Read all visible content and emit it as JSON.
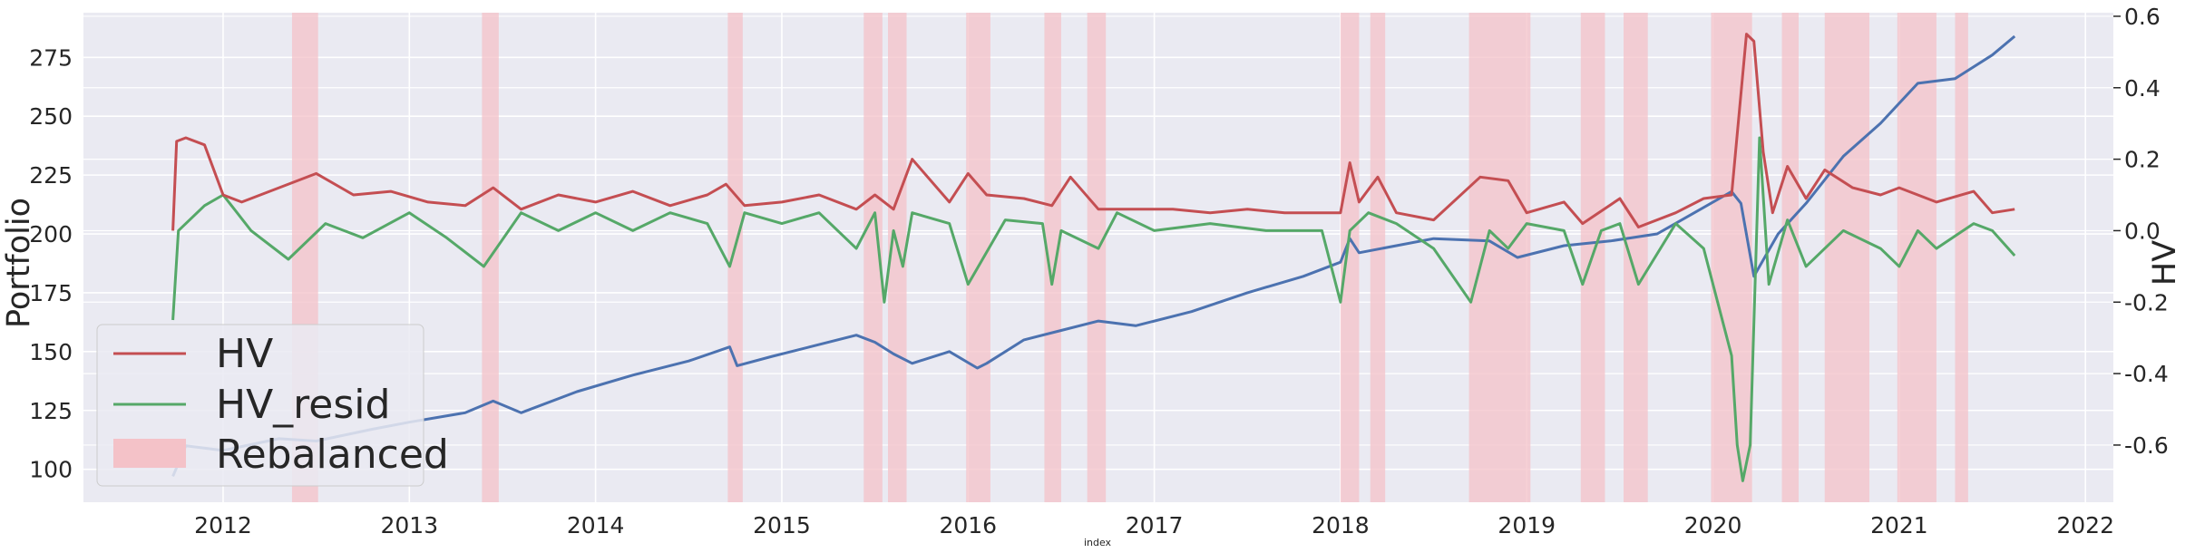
{
  "chart_data": {
    "type": "line",
    "title": "",
    "xlabel": "index",
    "ylabel_left": "Portfolio",
    "ylabel_right": "HV",
    "x_range": [
      2011.25,
      2022.15
    ],
    "xticks": [
      "2012",
      "2013",
      "2014",
      "2015",
      "2016",
      "2017",
      "2018",
      "2019",
      "2020",
      "2021",
      "2022"
    ],
    "left_axis": {
      "ylim": [
        86,
        294
      ],
      "ticks": [
        100,
        125,
        150,
        175,
        200,
        225,
        250,
        275
      ]
    },
    "right_axis": {
      "ylim": [
        -0.76,
        0.61
      ],
      "ticks": [
        -0.6,
        -0.4,
        -0.2,
        0.0,
        0.2,
        0.4,
        0.6
      ]
    },
    "legend": {
      "position": "lower-left"
    },
    "grid": true,
    "colors": {
      "HV": "#c44e52",
      "HV_resid": "#55a868",
      "Portfolio": "#4c72b0",
      "Rebalanced": "#f4c2c8",
      "background": "#eaeaf2"
    },
    "rebalanced_periods": [
      [
        2012.37,
        2012.51
      ],
      [
        2013.39,
        2013.48
      ],
      [
        2014.71,
        2014.79
      ],
      [
        2015.44,
        2015.54
      ],
      [
        2015.57,
        2015.67
      ],
      [
        2015.99,
        2016.12
      ],
      [
        2016.41,
        2016.5
      ],
      [
        2016.64,
        2016.74
      ],
      [
        2018.0,
        2018.1
      ],
      [
        2018.16,
        2018.24
      ],
      [
        2018.69,
        2019.02
      ],
      [
        2019.29,
        2019.42
      ],
      [
        2019.52,
        2019.65
      ],
      [
        2019.99,
        2020.21
      ],
      [
        2020.37,
        2020.46
      ],
      [
        2020.6,
        2020.84
      ],
      [
        2020.99,
        2021.2
      ],
      [
        2021.3,
        2021.37
      ]
    ],
    "series": [
      {
        "name": "Portfolio",
        "axis": "left",
        "x": [
          2011.73,
          2011.8,
          2012.0,
          2012.3,
          2012.5,
          2012.8,
          2013.0,
          2013.3,
          2013.45,
          2013.6,
          2013.9,
          2014.2,
          2014.5,
          2014.72,
          2014.76,
          2014.95,
          2015.2,
          2015.4,
          2015.5,
          2015.6,
          2015.7,
          2015.9,
          2016.05,
          2016.1,
          2016.3,
          2016.5,
          2016.7,
          2016.9,
          2017.2,
          2017.5,
          2017.8,
          2018.0,
          2018.05,
          2018.1,
          2018.3,
          2018.5,
          2018.8,
          2018.95,
          2019.2,
          2019.45,
          2019.7,
          2019.9,
          2020.1,
          2020.15,
          2020.22,
          2020.35,
          2020.5,
          2020.7,
          2020.9,
          2021.1,
          2021.3,
          2021.5,
          2021.62
        ],
        "values": [
          97,
          110,
          108,
          113,
          112,
          117,
          120,
          124,
          129,
          124,
          133,
          140,
          146,
          152,
          144,
          148,
          153,
          157,
          154,
          149,
          145,
          150,
          143,
          145,
          155,
          159,
          163,
          161,
          167,
          175,
          182,
          188,
          198,
          192,
          195,
          198,
          197,
          190,
          195,
          197,
          200,
          209,
          218,
          213,
          182,
          200,
          213,
          233,
          247,
          264,
          266,
          276,
          284
        ]
      },
      {
        "name": "HV",
        "axis": "right",
        "x": [
          2011.73,
          2011.75,
          2011.8,
          2011.9,
          2012.0,
          2012.1,
          2012.3,
          2012.5,
          2012.7,
          2012.9,
          2013.1,
          2013.3,
          2013.45,
          2013.6,
          2013.8,
          2014.0,
          2014.2,
          2014.4,
          2014.6,
          2014.7,
          2014.8,
          2015.0,
          2015.2,
          2015.4,
          2015.5,
          2015.6,
          2015.7,
          2015.9,
          2016.0,
          2016.1,
          2016.3,
          2016.45,
          2016.55,
          2016.7,
          2016.9,
          2017.1,
          2017.3,
          2017.5,
          2017.7,
          2017.9,
          2018.0,
          2018.05,
          2018.1,
          2018.2,
          2018.3,
          2018.5,
          2018.75,
          2018.9,
          2019.0,
          2019.2,
          2019.3,
          2019.5,
          2019.6,
          2019.8,
          2019.95,
          2020.1,
          2020.18,
          2020.22,
          2020.27,
          2020.32,
          2020.4,
          2020.5,
          2020.6,
          2020.75,
          2020.9,
          2021.0,
          2021.2,
          2021.4,
          2021.5,
          2021.62
        ],
        "values": [
          0.0,
          0.25,
          0.26,
          0.24,
          0.1,
          0.08,
          0.12,
          0.16,
          0.1,
          0.11,
          0.08,
          0.07,
          0.12,
          0.06,
          0.1,
          0.08,
          0.11,
          0.07,
          0.1,
          0.13,
          0.07,
          0.08,
          0.1,
          0.06,
          0.1,
          0.06,
          0.2,
          0.08,
          0.16,
          0.1,
          0.09,
          0.07,
          0.15,
          0.06,
          0.06,
          0.06,
          0.05,
          0.06,
          0.05,
          0.05,
          0.05,
          0.19,
          0.08,
          0.15,
          0.05,
          0.03,
          0.15,
          0.14,
          0.05,
          0.08,
          0.02,
          0.09,
          0.01,
          0.05,
          0.09,
          0.1,
          0.55,
          0.53,
          0.22,
          0.05,
          0.18,
          0.09,
          0.17,
          0.12,
          0.1,
          0.12,
          0.08,
          0.11,
          0.05,
          0.06
        ]
      },
      {
        "name": "HV_resid",
        "axis": "right",
        "x": [
          2011.73,
          2011.76,
          2011.9,
          2012.0,
          2012.15,
          2012.35,
          2012.55,
          2012.75,
          2013.0,
          2013.2,
          2013.4,
          2013.6,
          2013.8,
          2014.0,
          2014.2,
          2014.4,
          2014.6,
          2014.72,
          2014.8,
          2015.0,
          2015.2,
          2015.4,
          2015.5,
          2015.55,
          2015.6,
          2015.65,
          2015.7,
          2015.9,
          2016.0,
          2016.2,
          2016.4,
          2016.45,
          2016.5,
          2016.7,
          2016.8,
          2017.0,
          2017.3,
          2017.6,
          2017.9,
          2018.0,
          2018.05,
          2018.15,
          2018.3,
          2018.5,
          2018.7,
          2018.8,
          2018.9,
          2019.0,
          2019.2,
          2019.3,
          2019.4,
          2019.5,
          2019.6,
          2019.8,
          2019.95,
          2020.1,
          2020.13,
          2020.16,
          2020.2,
          2020.25,
          2020.3,
          2020.4,
          2020.5,
          2020.7,
          2020.9,
          2021.0,
          2021.1,
          2021.2,
          2021.4,
          2021.5,
          2021.62
        ],
        "values": [
          -0.25,
          0.0,
          0.07,
          0.1,
          0.0,
          -0.08,
          0.02,
          -0.02,
          0.05,
          -0.02,
          -0.1,
          0.05,
          0.0,
          0.05,
          0.0,
          0.05,
          0.02,
          -0.1,
          0.05,
          0.02,
          0.05,
          -0.05,
          0.05,
          -0.2,
          0.0,
          -0.1,
          0.05,
          0.02,
          -0.15,
          0.03,
          0.02,
          -0.15,
          0.0,
          -0.05,
          0.05,
          0.0,
          0.02,
          0.0,
          0.0,
          -0.2,
          0.0,
          0.05,
          0.02,
          -0.05,
          -0.2,
          0.0,
          -0.05,
          0.02,
          0.0,
          -0.15,
          0.0,
          0.02,
          -0.15,
          0.02,
          -0.05,
          -0.35,
          -0.6,
          -0.7,
          -0.6,
          0.26,
          -0.15,
          0.03,
          -0.1,
          0.0,
          -0.05,
          -0.1,
          0.0,
          -0.05,
          0.02,
          0.0,
          -0.07
        ]
      }
    ],
    "legend_entries": [
      "HV",
      "HV_resid",
      "Rebalanced"
    ]
  }
}
